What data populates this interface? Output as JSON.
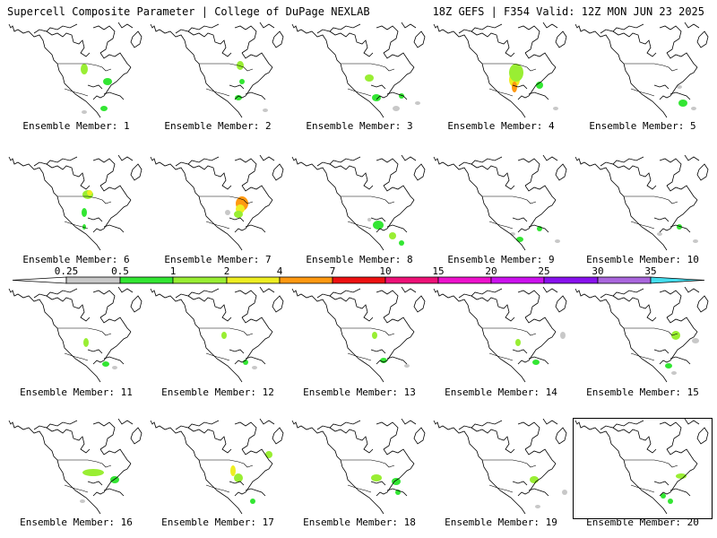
{
  "header": {
    "title": "Supercell Composite Parameter | College of DuPage NEXLAB",
    "run_info": "18Z GEFS | F354 Valid: 12Z MON JUN 23 2025"
  },
  "panels": [
    {
      "label": "Ensemble Member: 1"
    },
    {
      "label": "Ensemble Member: 2"
    },
    {
      "label": "Ensemble Member: 3"
    },
    {
      "label": "Ensemble Member: 4"
    },
    {
      "label": "Ensemble Member: 5"
    },
    {
      "label": "Ensemble Member: 6"
    },
    {
      "label": "Ensemble Member: 7"
    },
    {
      "label": "Ensemble Member: 8"
    },
    {
      "label": "Ensemble Member: 9"
    },
    {
      "label": "Ensemble Member: 10"
    },
    {
      "label": "Ensemble Member: 11"
    },
    {
      "label": "Ensemble Member: 12"
    },
    {
      "label": "Ensemble Member: 13"
    },
    {
      "label": "Ensemble Member: 14"
    },
    {
      "label": "Ensemble Member: 15"
    },
    {
      "label": "Ensemble Member: 16"
    },
    {
      "label": "Ensemble Member: 17"
    },
    {
      "label": "Ensemble Member: 18"
    },
    {
      "label": "Ensemble Member: 19"
    },
    {
      "label": "Ensemble Member: 20"
    }
  ],
  "legend": {
    "ticks": [
      "0.25",
      "0.5",
      "1",
      "2",
      "4",
      "7",
      "10",
      "15",
      "20",
      "25",
      "30",
      "35"
    ],
    "colors": [
      "#c8c8c8",
      "#33e633",
      "#99ee33",
      "#eeee22",
      "#ff9911",
      "#ee1111",
      "#ee1177",
      "#ee11cc",
      "#cc11ee",
      "#8811ee",
      "#aa66dd",
      "#44ddee"
    ]
  },
  "colors": {
    "background": "#ffffff",
    "outline": "#000000",
    "light_green": "#99ee33",
    "green": "#33e633",
    "gray": "#c8c8c8",
    "yellow": "#eeee22",
    "orange": "#ff9911"
  }
}
